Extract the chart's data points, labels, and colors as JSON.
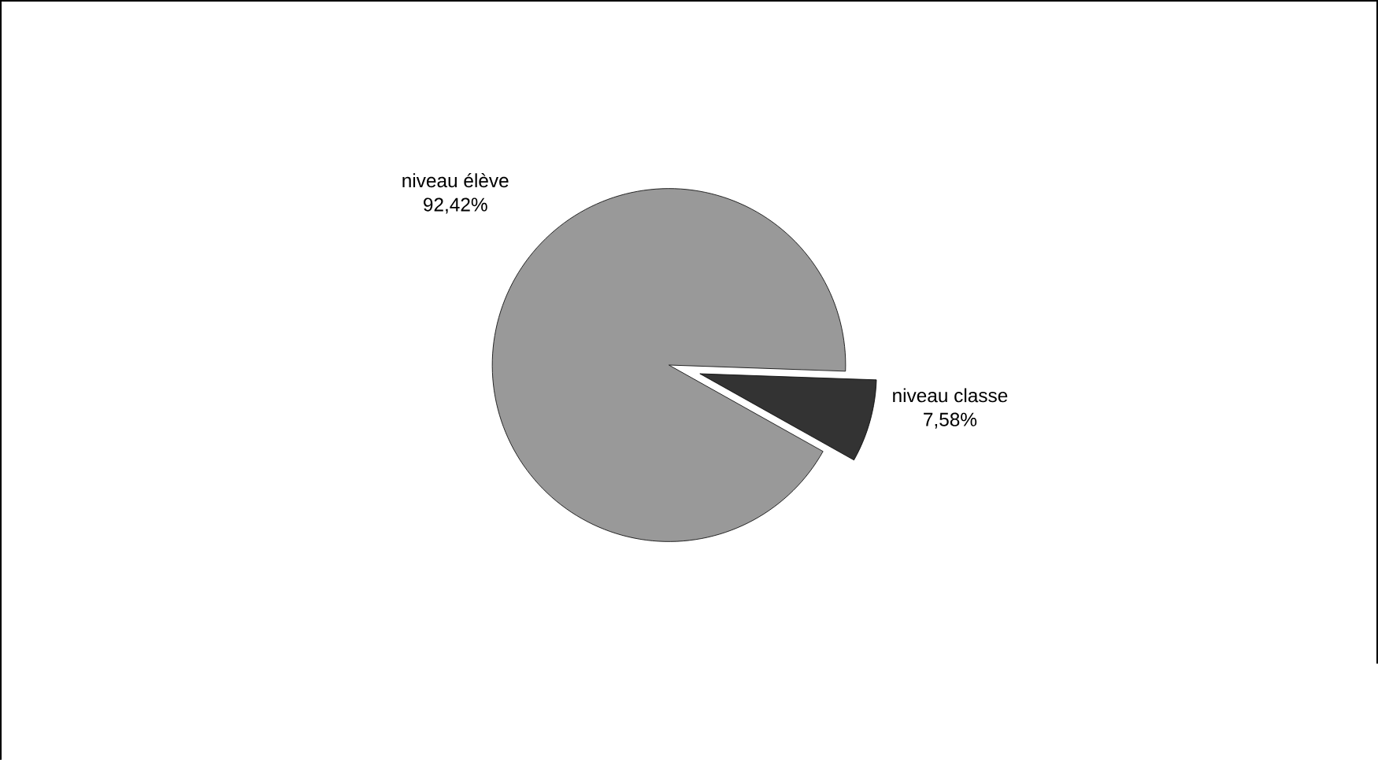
{
  "chart_data": {
    "type": "pie",
    "categories": [
      "niveau élève",
      "niveau classe"
    ],
    "values": [
      92.42,
      7.58
    ],
    "colors": [
      "#999999",
      "#333333"
    ],
    "value_labels": [
      "92,42%",
      "7,58%"
    ]
  }
}
